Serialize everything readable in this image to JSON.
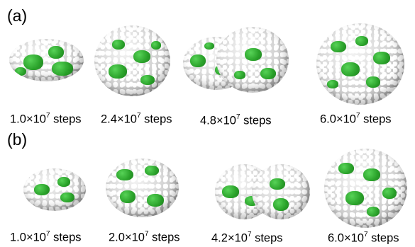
{
  "panels": [
    {
      "label": "(a)",
      "items": [
        {
          "mantissa": "1.0",
          "times": "×10",
          "exponent": "7",
          "unit": "steps"
        },
        {
          "mantissa": "2.4",
          "times": "×10",
          "exponent": "7",
          "unit": "steps"
        },
        {
          "mantissa": "4.8",
          "times": "×10",
          "exponent": "7",
          "unit": "steps"
        },
        {
          "mantissa": "6.0",
          "times": "×10",
          "exponent": "7",
          "unit": "steps"
        }
      ]
    },
    {
      "label": "(b)",
      "items": [
        {
          "mantissa": "1.0",
          "times": "×10",
          "exponent": "7",
          "unit": "steps"
        },
        {
          "mantissa": "2.0",
          "times": "×10",
          "exponent": "7",
          "unit": "steps"
        },
        {
          "mantissa": "4.2",
          "times": "×10",
          "exponent": "7",
          "unit": "steps"
        },
        {
          "mantissa": "6.0",
          "times": "×10",
          "exponent": "7",
          "unit": "steps"
        }
      ]
    }
  ],
  "colors": {
    "accent": "#2aa52a",
    "bead": "#d9d9d9",
    "shadow": "#808080"
  }
}
